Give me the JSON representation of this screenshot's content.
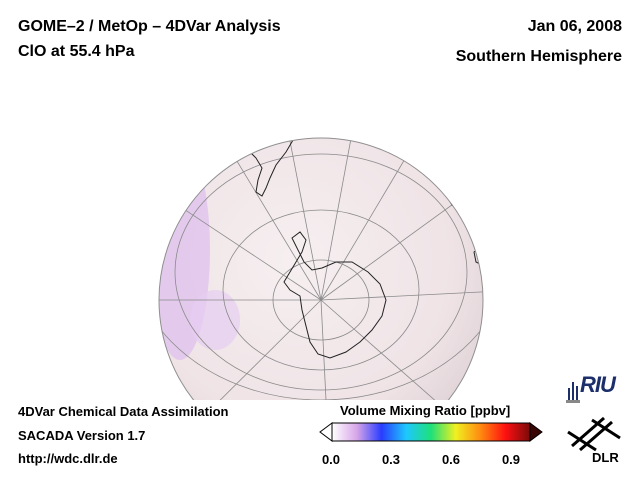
{
  "header": {
    "title_line1": "GOME–2 / MetOp – 4DVar Analysis",
    "title_line2": "ClO at 55.4 hPa",
    "date": "Jan 06, 2008",
    "region": "Southern Hemisphere"
  },
  "footer": {
    "line1": "4DVar Chemical Data Assimilation",
    "line2": "SACADA Version 1.7",
    "line3": "http://wdc.dlr.de"
  },
  "colorbar": {
    "title": "Volume Mixing Ratio [ppbv]",
    "ticks": [
      "0.0",
      "0.3",
      "0.6",
      "0.9"
    ],
    "colors": [
      "#ffffff",
      "#d7a6e8",
      "#2a3cff",
      "#1ec8ff",
      "#1ee07a",
      "#f0f020",
      "#ff8a10",
      "#ff1010",
      "#7a0a0a"
    ]
  },
  "logos": {
    "riu": "RIU",
    "dlr": "DLR"
  },
  "map": {
    "ocean_color": "#f3eaec",
    "tint_color": "#e3c9ef"
  }
}
